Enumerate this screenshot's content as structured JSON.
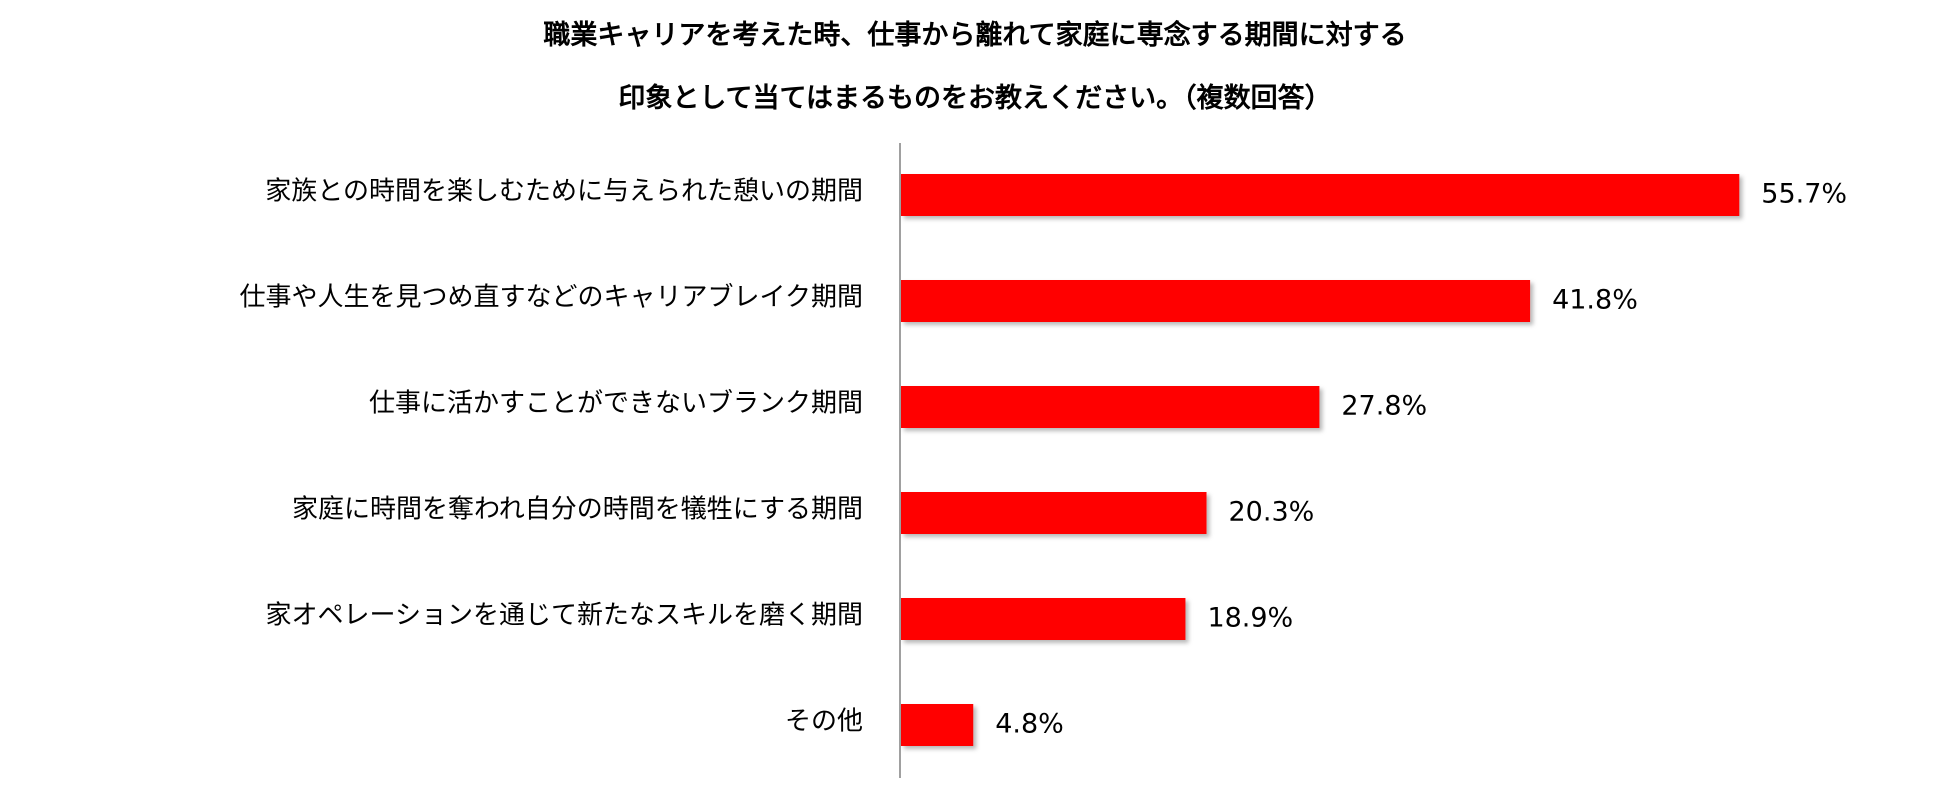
{
  "chart_data": {
    "type": "bar",
    "orientation": "horizontal",
    "title_lines": [
      "職業キャリアを考えた時、仕事から離れて家庭に専念する期間に対する",
      "印象として当てはまるものをお教えください。（複数回答）"
    ],
    "categories": [
      "家族との時間を楽しむために与えられた憩いの期間",
      "仕事や人生を見つめ直すなどのキャリアブレイク期間",
      "仕事に活かすことができないブランク期間",
      "家庭に時間を奪われ自分の時間を犠牲にする期間",
      "家オペレーションを通じて新たなスキルを磨く期間",
      "その他"
    ],
    "values": [
      55.7,
      41.8,
      27.8,
      20.3,
      18.9,
      4.8
    ],
    "value_labels": [
      "55.7%",
      "41.8%",
      "27.8%",
      "20.3%",
      "18.9%",
      "4.8%"
    ],
    "unit": "%",
    "xlim": [
      0,
      60
    ],
    "grid": false,
    "legend": "none",
    "bar_color": "#ff0000",
    "axis_color": "#808080"
  }
}
